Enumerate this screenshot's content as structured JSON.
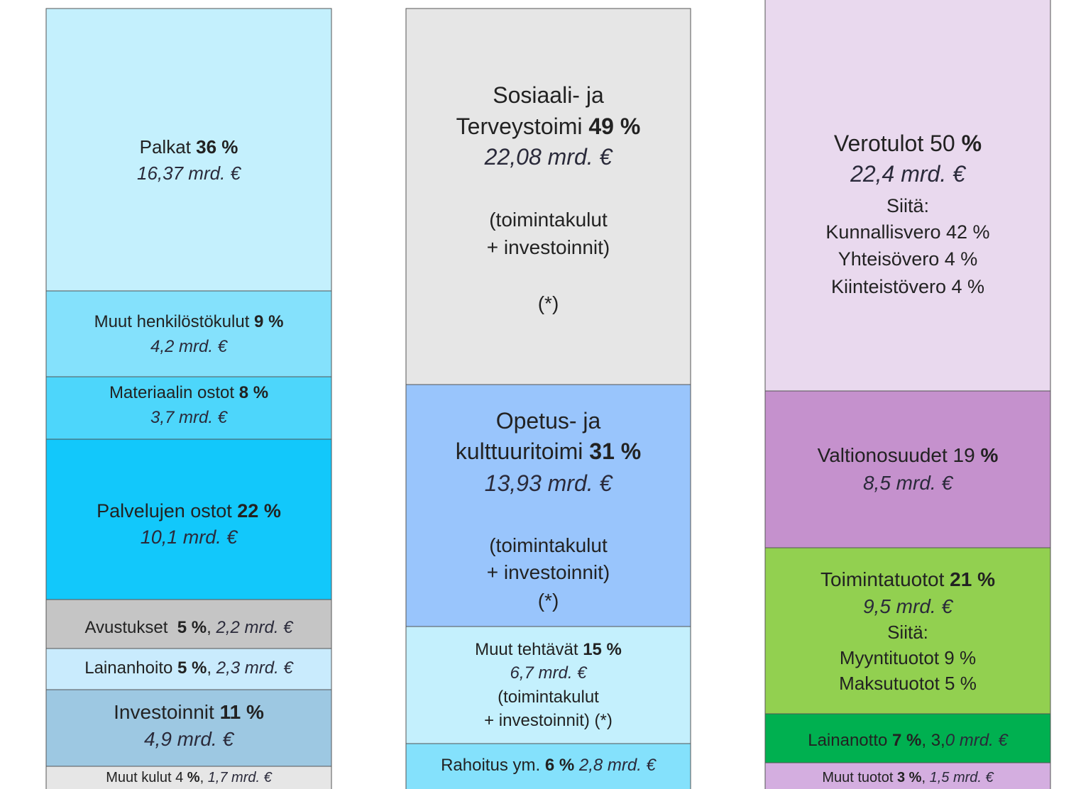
{
  "columns": [
    {
      "blocks": [
        {
          "color": "#c4f0fd",
          "lines": [
            [
              {
                "text": "Palkat "
              },
              {
                "text": "36 %",
                "bold": true
              }
            ],
            [
              {
                "text": "16,37 mrd. €",
                "italic": true
              }
            ]
          ]
        },
        {
          "color": "#84e1fc",
          "lines": [
            [
              {
                "text": "Muut henkilöstökulut "
              },
              {
                "text": "9 %",
                "bold": true
              }
            ],
            [
              {
                "text": "4,2 mrd. €",
                "italic": true
              }
            ]
          ]
        },
        {
          "color": "#4dd6fb",
          "lines": [
            [
              {
                "text": "Materiaalin ostot "
              },
              {
                "text": "8 %",
                "bold": true
              }
            ],
            [
              {
                "text": "3,7 mrd. €",
                "italic": true
              }
            ]
          ]
        },
        {
          "color": "#12c8fb",
          "lines": [
            [
              {
                "text": "Palvelujen ostot "
              },
              {
                "text": "22 %",
                "bold": true
              }
            ],
            [
              {
                "text": "10,1 mrd. €",
                "italic": true
              }
            ]
          ]
        },
        {
          "color": "#c5c5c5",
          "lines": [
            [
              {
                "text": "Avustukset  "
              },
              {
                "text": "5 %",
                "bold": true
              },
              {
                "text": ", "
              },
              {
                "text": "2,2 mrd. €",
                "italic": true
              }
            ]
          ]
        },
        {
          "color": "#c9ebfd",
          "lines": [
            [
              {
                "text": "Lainanhoito "
              },
              {
                "text": "5 %",
                "bold": true
              },
              {
                "text": ", "
              },
              {
                "text": "2,3 mrd. €",
                "italic": true
              }
            ]
          ]
        },
        {
          "color": "#9dc8e2",
          "lines": [
            [
              {
                "text": "Investoinnit "
              },
              {
                "text": "11 %",
                "bold": true
              }
            ],
            [
              {
                "text": "4,9 mrd. €",
                "italic": true
              }
            ]
          ]
        },
        {
          "color": "#e6e6e6",
          "lines": [
            [
              {
                "text": "Muut kulut 4 "
              },
              {
                "text": "%",
                "bold": true
              },
              {
                "text": ", "
              },
              {
                "text": "1,7 mrd. €",
                "italic": true
              }
            ]
          ]
        }
      ]
    },
    {
      "blocks": [
        {
          "color": "#e6e6e6",
          "lines": [
            [
              {
                "text": "Sosiaali- ja"
              }
            ],
            [
              {
                "text": "Terveystoimi "
              },
              {
                "text": "49 %",
                "bold": true
              }
            ],
            [
              {
                "text": "22,08 mrd. €",
                "italic": true
              }
            ],
            [
              {
                "text": "(toimintakulut"
              }
            ],
            [
              {
                "text": "+ investoinnit)"
              }
            ],
            [
              {
                "text": "(*)"
              }
            ]
          ]
        },
        {
          "color": "#99c5fc",
          "lines": [
            [
              {
                "text": "Opetus- ja"
              }
            ],
            [
              {
                "text": "kulttuuritoimi "
              },
              {
                "text": "31 %",
                "bold": true
              }
            ],
            [
              {
                "text": "13,93 mrd. €",
                "italic": true
              }
            ],
            [
              {
                "text": "(toimintakulut"
              }
            ],
            [
              {
                "text": "+ investoinnit)"
              }
            ],
            [
              {
                "text": "(*)"
              }
            ]
          ]
        },
        {
          "color": "#c4f0fd",
          "lines": [
            [
              {
                "text": "Muut tehtävät "
              },
              {
                "text": "15 %",
                "bold": true
              }
            ],
            [
              {
                "text": "6,7 mrd. €",
                "italic": true
              }
            ],
            [
              {
                "text": "(toimintakulut"
              }
            ],
            [
              {
                "text": "+ investoinnit) (*)"
              }
            ]
          ]
        },
        {
          "color": "#84e1fc",
          "lines": [
            [
              {
                "text": "Rahoitus ym. "
              },
              {
                "text": "6 %",
                "bold": true
              },
              {
                "text": " "
              },
              {
                "text": "2,8 mrd. €",
                "italic": true
              }
            ]
          ]
        }
      ]
    },
    {
      "blocks": [
        {
          "color": "#e9d9ee",
          "lines": [
            [
              {
                "text": "Verotulot 50 "
              },
              {
                "text": "%",
                "bold": true
              }
            ],
            [
              {
                "text": "22,4 mrd. €",
                "italic": true
              }
            ],
            [
              {
                "text": "Siitä:"
              }
            ],
            [
              {
                "text": "Kunnallisvero 42 %"
              }
            ],
            [
              {
                "text": "Yhteisövero 4 %"
              }
            ],
            [
              {
                "text": "Kiinteistövero 4 %"
              }
            ]
          ]
        },
        {
          "color": "#c591cd",
          "lines": [
            [
              {
                "text": "Valtionosuudet 19 "
              },
              {
                "text": "%",
                "bold": true
              }
            ],
            [
              {
                "text": "8,5 mrd. €",
                "italic": true
              }
            ]
          ]
        },
        {
          "color": "#92d050",
          "lines": [
            [
              {
                "text": "Toimintatuotot "
              },
              {
                "text": "21 %",
                "bold": true
              }
            ],
            [
              {
                "text": "9,5 mrd. €",
                "italic": true
              }
            ],
            [
              {
                "text": "Siitä:"
              }
            ],
            [
              {
                "text": "Myyntituotot 9 %"
              }
            ],
            [
              {
                "text": "Maksutuotot 5 %"
              }
            ]
          ]
        },
        {
          "color": "#00b050",
          "lines": [
            [
              {
                "text": "Lainanotto "
              },
              {
                "text": "7 %",
                "bold": true
              },
              {
                "text": ", 3,"
              },
              {
                "text": "0 mrd. €",
                "italic": true
              }
            ]
          ]
        },
        {
          "color": "#d4aee0",
          "lines": [
            [
              {
                "text": "Muut tuotot "
              },
              {
                "text": "3 %",
                "bold": true
              },
              {
                "text": ", "
              },
              {
                "text": "1,5 mrd. €",
                "italic": true
              }
            ]
          ]
        }
      ]
    }
  ]
}
